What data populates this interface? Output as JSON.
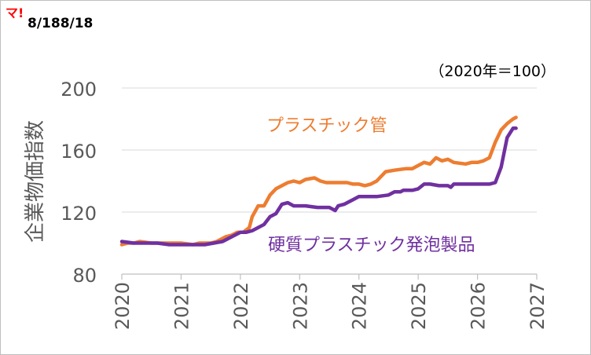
{
  "header": {
    "mark": "マ!",
    "date": "8/188/18"
  },
  "chart_data": {
    "type": "line",
    "note": "（2020年＝100）",
    "ylabel": "企業物価指数",
    "xlabel": "",
    "ylim": [
      80,
      200
    ],
    "yticks": [
      "80",
      "120",
      "160",
      "200"
    ],
    "xlim": [
      2020,
      2027
    ],
    "xticks": [
      "2020",
      "2021",
      "2022",
      "2023",
      "2024",
      "2025",
      "2026",
      "2027"
    ],
    "grid": "horizontal",
    "legend": "inline labels",
    "series": [
      {
        "name": "プラスチック管",
        "color": "#ed7d31",
        "x": [
          2020.0,
          2020.1,
          2020.2,
          2020.3,
          2020.5,
          2020.6,
          2020.8,
          2021.0,
          2021.2,
          2021.3,
          2021.5,
          2021.6,
          2021.75,
          2021.85,
          2021.95,
          2022.05,
          2022.15,
          2022.2,
          2022.3,
          2022.4,
          2022.5,
          2022.6,
          2022.7,
          2022.8,
          2022.9,
          2023.0,
          2023.1,
          2023.25,
          2023.35,
          2023.45,
          2023.6,
          2023.8,
          2023.9,
          2024.0,
          2024.1,
          2024.2,
          2024.3,
          2024.45,
          2024.6,
          2024.8,
          2024.9,
          2025.0,
          2025.1,
          2025.2,
          2025.3,
          2025.4,
          2025.5,
          2025.6,
          2025.8,
          2025.9,
          2026.0,
          2026.1,
          2026.2,
          2026.3,
          2026.4,
          2026.5,
          2026.6,
          2026.65
        ],
        "y": [
          99,
          100,
          100,
          101,
          100,
          100,
          100,
          100,
          99,
          100,
          100,
          101,
          104,
          105,
          107,
          107,
          110,
          117,
          124,
          124,
          131,
          135,
          137,
          139,
          140,
          139,
          141,
          142,
          140,
          139,
          139,
          139,
          138,
          138,
          137,
          138,
          140,
          146,
          147,
          148,
          148,
          150,
          152,
          151,
          155,
          153,
          154,
          152,
          151,
          152,
          152,
          153,
          155,
          165,
          173,
          177,
          180,
          181
        ]
      },
      {
        "name": "硬質プラスチック発泡製品",
        "color": "#7030a0",
        "x": [
          2020.0,
          2020.2,
          2020.4,
          2020.6,
          2020.8,
          2021.0,
          2021.2,
          2021.4,
          2021.55,
          2021.7,
          2021.85,
          2022.0,
          2022.1,
          2022.2,
          2022.3,
          2022.4,
          2022.5,
          2022.6,
          2022.7,
          2022.8,
          2022.9,
          2023.0,
          2023.1,
          2023.3,
          2023.5,
          2023.6,
          2023.65,
          2023.75,
          2023.9,
          2024.0,
          2024.1,
          2024.2,
          2024.3,
          2024.5,
          2024.6,
          2024.7,
          2024.75,
          2024.9,
          2025.0,
          2025.1,
          2025.2,
          2025.35,
          2025.5,
          2025.55,
          2025.6,
          2025.8,
          2025.9,
          2026.0,
          2026.1,
          2026.2,
          2026.3,
          2026.4,
          2026.5,
          2026.6,
          2026.65
        ],
        "y": [
          101,
          100,
          100,
          100,
          99,
          99,
          99,
          99,
          100,
          101,
          104,
          107,
          107,
          108,
          110,
          112,
          117,
          119,
          125,
          126,
          124,
          124,
          124,
          123,
          123,
          121,
          124,
          125,
          128,
          130,
          130,
          130,
          130,
          131,
          133,
          133,
          134,
          134,
          135,
          138,
          138,
          137,
          137,
          136,
          138,
          138,
          138,
          138,
          138,
          138,
          139,
          149,
          168,
          174,
          174
        ]
      }
    ]
  }
}
